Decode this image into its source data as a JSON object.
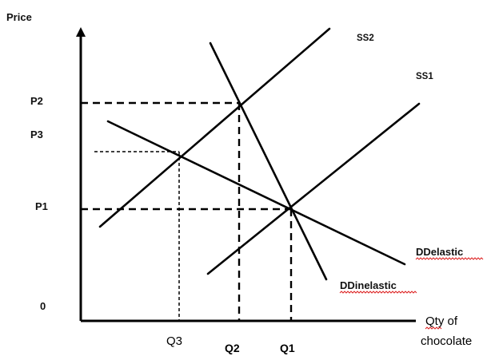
{
  "y_axis_label": "Price",
  "x_axis_label_line1": "Qty of",
  "x_axis_label_line2": "chocolate",
  "origin_label": "0",
  "price_labels": {
    "p2": "P2",
    "p3": "P3",
    "p1": "P1"
  },
  "quantity_labels": {
    "q3": "Q3",
    "q2": "Q2",
    "q1": "Q1"
  },
  "curve_labels": {
    "ss2": "SS2",
    "ss1": "SS1",
    "dd_elastic": "DDelastic",
    "dd_inelastic": "DDinelastic"
  },
  "colors": {
    "line": "#000000",
    "spellcheck_underline": "#dd2222"
  }
}
